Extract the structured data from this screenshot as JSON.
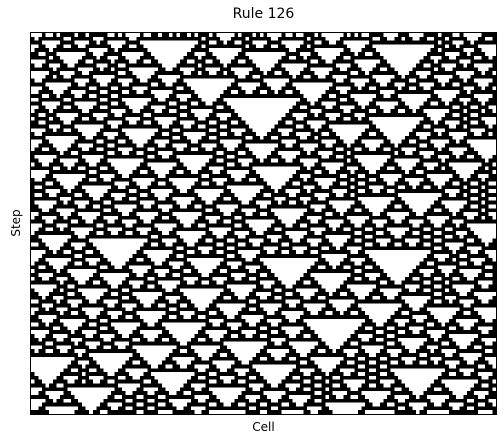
{
  "chart_data": {
    "type": "heatmap",
    "title": "Rule 126",
    "xlabel": "Cell",
    "ylabel": "Step",
    "rule": 126,
    "cells": 128,
    "steps": 100,
    "initial_condition": "random",
    "colormap": {
      "alive": "#000000",
      "dead": "#ffffff"
    },
    "xticks": [],
    "yticks": [],
    "grid": false
  }
}
